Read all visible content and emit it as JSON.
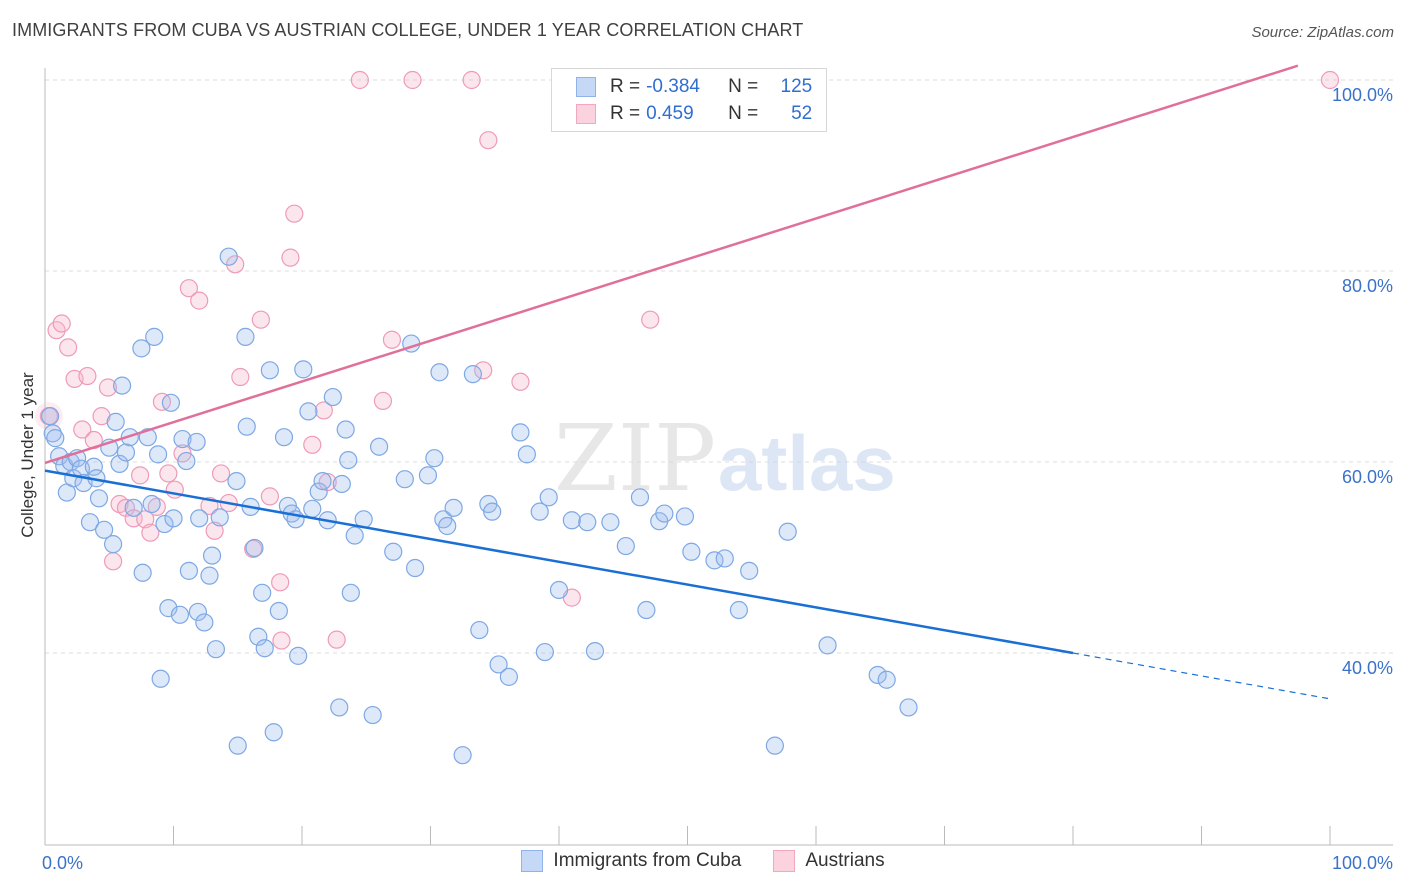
{
  "title": "IMMIGRANTS FROM CUBA VS AUSTRIAN COLLEGE, UNDER 1 YEAR CORRELATION CHART",
  "source": "Source: ZipAtlas.com",
  "watermark": {
    "zip": "ZIP",
    "atlas": "atlas"
  },
  "legend": {
    "rows": [
      {
        "r_label": "R =",
        "r_value": "-0.384",
        "n_label": "N =",
        "n_value": "125",
        "color": "#8fb3ea",
        "fill": "#c5d8f5"
      },
      {
        "r_label": "R =",
        "r_value": "0.459",
        "n_label": "N =",
        "n_value": "52",
        "color": "#f2a9c0",
        "fill": "#fbd3df"
      }
    ]
  },
  "bottom_legend": [
    "Immigrants from Cuba",
    "Austrians"
  ],
  "colors": {
    "blue": "#1a6fd4",
    "blue_fill": "rgba(157,190,238,0.35)",
    "blue_stroke": "#7ea8e4",
    "pink": "#e0709a",
    "pink_fill": "rgba(246,182,204,0.35)",
    "pink_stroke": "#ef9ab8",
    "axis_text": "#3a72c9",
    "grid": "#dcdcdc"
  },
  "chart_data": {
    "type": "scatter",
    "title": "IMMIGRANTS FROM CUBA VS AUSTRIAN COLLEGE, UNDER 1 YEAR CORRELATION CHART",
    "xlabel": "",
    "ylabel": "College, Under 1 year",
    "xlim": [
      0,
      100
    ],
    "ylim": [
      20,
      102
    ],
    "x_tick_labels": [
      "0.0%",
      "100.0%"
    ],
    "y_ticks": [
      {
        "value": 40,
        "label": "40.0%"
      },
      {
        "value": 60,
        "label": "60.0%"
      },
      {
        "value": 80,
        "label": "80.0%"
      },
      {
        "value": 100,
        "label": "100.0%"
      }
    ],
    "series": [
      {
        "name": "Immigrants from Cuba",
        "color": "blue",
        "r": -0.384,
        "n": 125,
        "trend": {
          "x1": 0,
          "y1": 59.1,
          "x2": 80,
          "y2": 40.0,
          "dash_to_x": 100,
          "dash_to_y": 35.2
        },
        "points": [
          [
            0.4,
            64.8
          ],
          [
            0.6,
            63.0
          ],
          [
            0.8,
            62.5
          ],
          [
            1.1,
            60.6
          ],
          [
            1.5,
            59.6
          ],
          [
            1.7,
            56.8
          ],
          [
            2.0,
            60.0
          ],
          [
            2.2,
            58.3
          ],
          [
            2.5,
            60.4
          ],
          [
            2.8,
            59.3
          ],
          [
            3.0,
            57.8
          ],
          [
            3.5,
            53.7
          ],
          [
            3.8,
            59.5
          ],
          [
            4.0,
            58.3
          ],
          [
            4.2,
            56.2
          ],
          [
            4.6,
            52.9
          ],
          [
            5.0,
            61.5
          ],
          [
            5.3,
            51.4
          ],
          [
            5.5,
            64.2
          ],
          [
            5.8,
            59.8
          ],
          [
            6.0,
            68.0
          ],
          [
            6.3,
            61.0
          ],
          [
            6.6,
            62.6
          ],
          [
            6.9,
            55.2
          ],
          [
            7.5,
            71.9
          ],
          [
            7.6,
            48.4
          ],
          [
            8.0,
            62.6
          ],
          [
            8.3,
            55.6
          ],
          [
            8.5,
            73.1
          ],
          [
            8.8,
            60.8
          ],
          [
            9.0,
            37.3
          ],
          [
            9.3,
            53.5
          ],
          [
            9.6,
            44.7
          ],
          [
            9.8,
            66.2
          ],
          [
            10.0,
            54.1
          ],
          [
            10.5,
            44.0
          ],
          [
            10.7,
            62.4
          ],
          [
            11.0,
            60.1
          ],
          [
            11.2,
            48.6
          ],
          [
            11.8,
            62.1
          ],
          [
            11.9,
            44.3
          ],
          [
            12.0,
            54.1
          ],
          [
            12.4,
            43.2
          ],
          [
            12.8,
            48.1
          ],
          [
            13.0,
            50.2
          ],
          [
            13.3,
            40.4
          ],
          [
            13.6,
            54.2
          ],
          [
            14.3,
            81.5
          ],
          [
            14.9,
            58.0
          ],
          [
            15.0,
            30.3
          ],
          [
            15.6,
            73.1
          ],
          [
            15.7,
            63.7
          ],
          [
            16.0,
            55.3
          ],
          [
            16.3,
            51.0
          ],
          [
            16.6,
            41.7
          ],
          [
            16.9,
            46.3
          ],
          [
            17.1,
            40.5
          ],
          [
            17.5,
            69.6
          ],
          [
            17.8,
            31.7
          ],
          [
            18.2,
            44.4
          ],
          [
            18.6,
            62.6
          ],
          [
            18.9,
            55.4
          ],
          [
            19.2,
            54.6
          ],
          [
            19.5,
            54.0
          ],
          [
            19.7,
            39.7
          ],
          [
            20.1,
            69.7
          ],
          [
            20.5,
            65.3
          ],
          [
            20.8,
            55.1
          ],
          [
            21.3,
            56.9
          ],
          [
            21.6,
            58.0
          ],
          [
            22.0,
            53.9
          ],
          [
            22.4,
            66.8
          ],
          [
            22.9,
            34.3
          ],
          [
            23.1,
            57.7
          ],
          [
            23.4,
            63.4
          ],
          [
            23.6,
            60.2
          ],
          [
            23.8,
            46.3
          ],
          [
            24.1,
            52.3
          ],
          [
            24.8,
            54.0
          ],
          [
            25.5,
            33.5
          ],
          [
            26.0,
            61.6
          ],
          [
            27.1,
            50.6
          ],
          [
            28.0,
            58.2
          ],
          [
            28.5,
            72.4
          ],
          [
            28.8,
            48.9
          ],
          [
            29.8,
            58.6
          ],
          [
            30.3,
            60.4
          ],
          [
            30.7,
            69.4
          ],
          [
            31.0,
            54.0
          ],
          [
            31.3,
            53.3
          ],
          [
            31.8,
            55.2
          ],
          [
            32.5,
            29.3
          ],
          [
            33.3,
            69.2
          ],
          [
            33.8,
            42.4
          ],
          [
            34.5,
            55.6
          ],
          [
            34.8,
            54.8
          ],
          [
            35.3,
            38.8
          ],
          [
            36.1,
            37.5
          ],
          [
            37.0,
            63.1
          ],
          [
            37.5,
            60.8
          ],
          [
            38.5,
            54.8
          ],
          [
            38.9,
            40.1
          ],
          [
            39.2,
            56.3
          ],
          [
            40.0,
            46.6
          ],
          [
            41.0,
            53.9
          ],
          [
            42.2,
            53.7
          ],
          [
            42.8,
            40.2
          ],
          [
            44.0,
            53.7
          ],
          [
            45.2,
            51.2
          ],
          [
            46.3,
            56.3
          ],
          [
            46.8,
            44.5
          ],
          [
            47.8,
            53.8
          ],
          [
            48.2,
            54.6
          ],
          [
            49.8,
            54.3
          ],
          [
            50.3,
            50.6
          ],
          [
            52.1,
            49.7
          ],
          [
            52.9,
            49.9
          ],
          [
            54.0,
            44.5
          ],
          [
            54.8,
            48.6
          ],
          [
            56.8,
            30.3
          ],
          [
            57.8,
            52.7
          ],
          [
            60.9,
            40.8
          ],
          [
            64.8,
            37.7
          ],
          [
            65.5,
            37.2
          ],
          [
            67.2,
            34.3
          ]
        ]
      },
      {
        "name": "Austrians",
        "color": "pink",
        "r": 0.459,
        "n": 52,
        "trend": {
          "x1": 0,
          "y1": 59.9,
          "x2": 97.5,
          "y2": 101.5
        },
        "points": [
          [
            0.3,
            64.8
          ],
          [
            0.9,
            73.8
          ],
          [
            1.3,
            74.5
          ],
          [
            1.8,
            72.0
          ],
          [
            2.3,
            68.7
          ],
          [
            2.9,
            63.4
          ],
          [
            3.3,
            69.0
          ],
          [
            3.8,
            62.3
          ],
          [
            4.4,
            64.8
          ],
          [
            4.9,
            67.8
          ],
          [
            5.3,
            49.6
          ],
          [
            5.8,
            55.6
          ],
          [
            6.3,
            55.2
          ],
          [
            6.9,
            54.1
          ],
          [
            7.4,
            58.6
          ],
          [
            7.8,
            54.0
          ],
          [
            8.2,
            52.6
          ],
          [
            8.7,
            55.3
          ],
          [
            9.1,
            66.3
          ],
          [
            9.6,
            58.8
          ],
          [
            10.1,
            57.1
          ],
          [
            10.7,
            60.9
          ],
          [
            11.2,
            78.2
          ],
          [
            12.0,
            76.9
          ],
          [
            12.8,
            55.4
          ],
          [
            13.2,
            52.8
          ],
          [
            13.7,
            58.8
          ],
          [
            14.3,
            55.7
          ],
          [
            14.8,
            80.7
          ],
          [
            15.2,
            68.9
          ],
          [
            16.2,
            50.9
          ],
          [
            16.8,
            74.9
          ],
          [
            17.5,
            56.4
          ],
          [
            18.3,
            47.4
          ],
          [
            18.4,
            41.3
          ],
          [
            19.1,
            81.4
          ],
          [
            19.4,
            86.0
          ],
          [
            20.8,
            61.8
          ],
          [
            21.7,
            65.4
          ],
          [
            22.0,
            57.9
          ],
          [
            22.7,
            41.4
          ],
          [
            24.5,
            100.0
          ],
          [
            26.3,
            66.4
          ],
          [
            27.0,
            72.8
          ],
          [
            28.6,
            100.0
          ],
          [
            33.2,
            100.0
          ],
          [
            34.1,
            69.6
          ],
          [
            34.5,
            93.7
          ],
          [
            37.0,
            68.4
          ],
          [
            41.0,
            45.8
          ],
          [
            47.1,
            74.9
          ],
          [
            100.0,
            100.0
          ]
        ]
      }
    ]
  }
}
